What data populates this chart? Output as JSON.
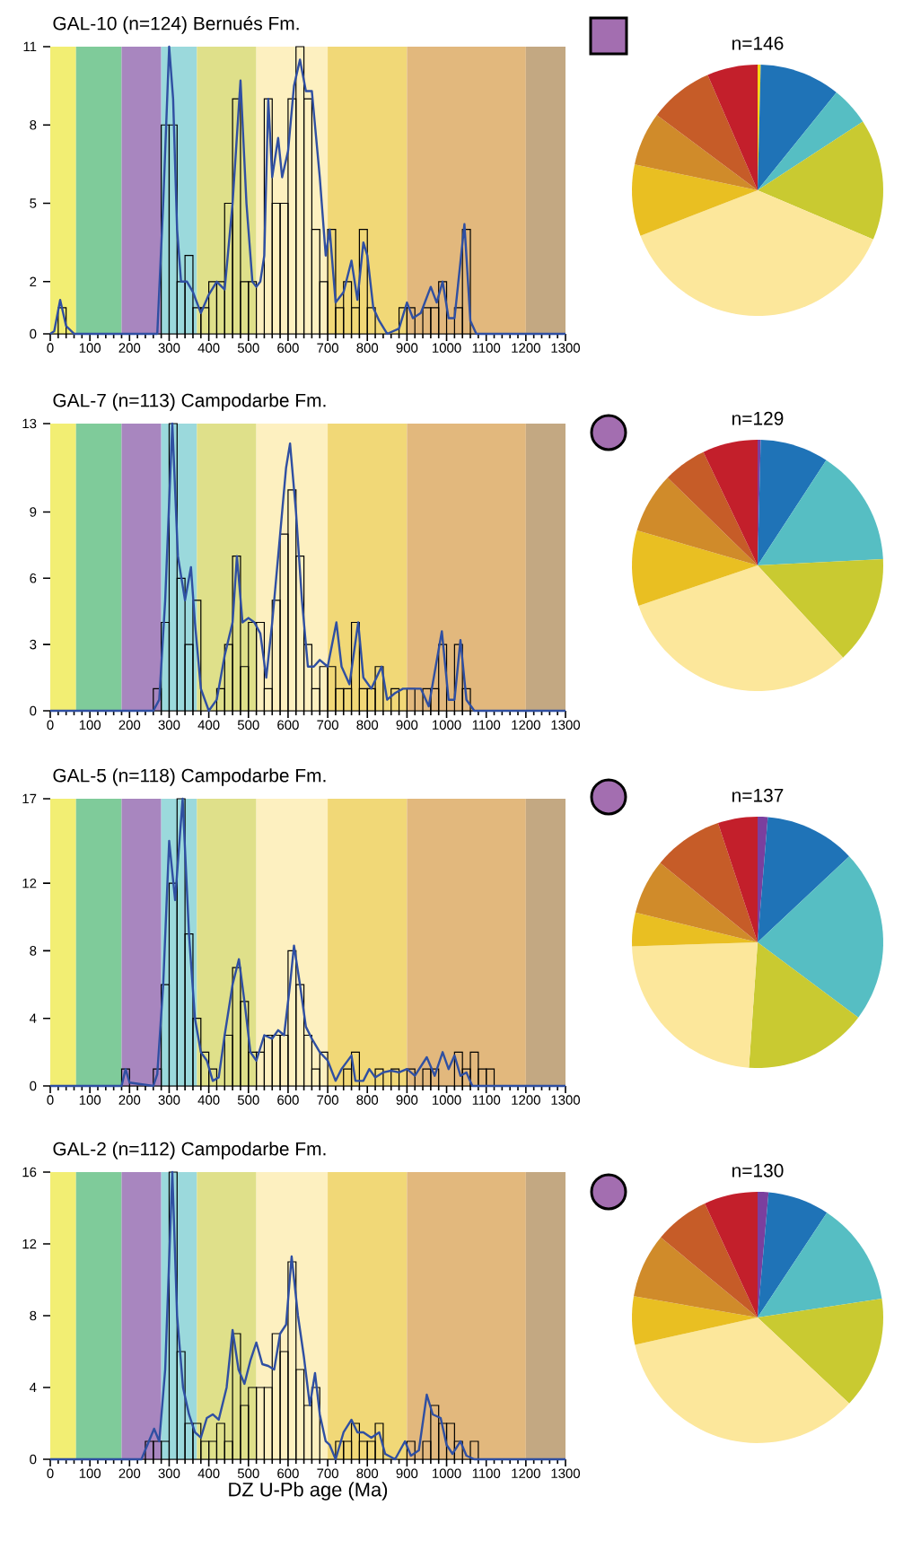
{
  "chart_data": [
    {
      "type": "histogram",
      "title": "GAL-10 (n=124) Bernués Fm.",
      "xlim": [
        0,
        1300
      ],
      "ylim": [
        0,
        11
      ],
      "xticks": [
        0,
        100,
        200,
        300,
        400,
        500,
        600,
        700,
        800,
        900,
        1000,
        1100,
        1200,
        1300
      ],
      "yticks": [
        0,
        2,
        5,
        8,
        11
      ],
      "bins": [
        0,
        20,
        40,
        60,
        80,
        100,
        120,
        140,
        160,
        180,
        200,
        220,
        240,
        260,
        280,
        300,
        320,
        340,
        360,
        380,
        400,
        420,
        440,
        460,
        480,
        500,
        520,
        540,
        560,
        580,
        600,
        620,
        640,
        660,
        680,
        700,
        720,
        740,
        760,
        780,
        800,
        820,
        840,
        860,
        880,
        900,
        920,
        940,
        960,
        980,
        1000,
        1020,
        1040,
        1060,
        1080,
        1100,
        1120,
        1140,
        1160,
        1180,
        1200,
        1220,
        1240,
        1260,
        1280,
        1300
      ],
      "bands": [
        {
          "axis": "x",
          "from": 0,
          "to": 65,
          "color": "#f2ee73"
        },
        {
          "axis": "x",
          "from": 65,
          "to": 180,
          "color": "#7fcb9a"
        },
        {
          "axis": "x",
          "from": 180,
          "to": 280,
          "color": "#a886bf"
        },
        {
          "axis": "x",
          "from": 280,
          "to": 370,
          "color": "#9bd9dc"
        },
        {
          "axis": "x",
          "from": 370,
          "to": 520,
          "color": "#dfe08a"
        },
        {
          "axis": "x",
          "from": 520,
          "to": 700,
          "color": "#fdf0c0"
        },
        {
          "axis": "x",
          "from": 700,
          "to": 900,
          "color": "#f1d877"
        },
        {
          "axis": "x",
          "from": 900,
          "to": 1200,
          "color": "#e2b87d"
        },
        {
          "axis": "x",
          "from": 1200,
          "to": 1300,
          "color": "#c3a882"
        }
      ],
      "color": "#000000",
      "values": [
        0,
        1,
        0,
        0,
        0,
        0,
        0,
        0,
        0,
        0,
        0,
        0,
        0,
        0,
        8,
        8,
        2,
        3,
        1,
        1,
        2,
        2,
        5,
        9,
        2,
        2,
        0,
        9,
        5,
        5,
        9,
        11,
        9,
        4,
        2,
        4,
        1,
        2,
        1,
        4,
        1,
        0,
        0,
        0,
        1,
        1,
        0,
        1,
        1,
        2,
        0,
        1,
        4,
        0,
        0,
        0,
        0,
        0,
        0,
        0,
        0,
        0,
        0,
        0,
        0
      ],
      "series": [
        {
          "type": "line",
          "color": "#2f4fa2",
          "x": [
            0,
            10,
            25,
            40,
            60,
            270,
            285,
            300,
            310,
            320,
            330,
            345,
            360,
            380,
            400,
            420,
            440,
            460,
            480,
            495,
            510,
            520,
            530,
            540,
            550,
            560,
            575,
            585,
            600,
            615,
            630,
            645,
            660,
            680,
            695,
            705,
            720,
            740,
            760,
            775,
            790,
            800,
            815,
            830,
            850,
            880,
            900,
            915,
            935,
            960,
            975,
            990,
            1005,
            1020,
            1045,
            1060,
            1075,
            1300
          ],
          "values": [
            0,
            0.1,
            1.3,
            0.3,
            0,
            0,
            5,
            11,
            9,
            4,
            2,
            2,
            1.6,
            0.8,
            1.5,
            2,
            1.7,
            5,
            9.7,
            5,
            2,
            1.8,
            2,
            3,
            9,
            6,
            7.5,
            6,
            7,
            9.5,
            10.5,
            9.3,
            9.3,
            6,
            3,
            4,
            1.2,
            1.6,
            2.8,
            1.3,
            3.5,
            3,
            1,
            0.5,
            0,
            0.2,
            1.2,
            0.6,
            0.8,
            1.8,
            1.2,
            2,
            0.6,
            0.6,
            4.2,
            0.5,
            0,
            0
          ]
        }
      ]
    },
    {
      "type": "pie",
      "title": "n=146",
      "categories": [
        null,
        null,
        null,
        null,
        null,
        null,
        null,
        null,
        null
      ],
      "values": [
        0.4,
        10.4,
        5.0,
        15.6,
        37.7,
        9.2,
        6.9,
        8.3,
        6.5
      ],
      "colors": [
        "#f5d816",
        "#1f73b7",
        "#56bec3",
        "#c9ca31",
        "#fce79b",
        "#e9bf22",
        "#d08b2a",
        "#c65c28",
        "#c31f2b"
      ]
    },
    {
      "type": "histogram",
      "title": "GAL-7 (n=113) Campodarbe Fm.",
      "xlim": [
        0,
        1300
      ],
      "ylim": [
        0,
        13
      ],
      "xticks": [
        0,
        100,
        200,
        300,
        400,
        500,
        600,
        700,
        800,
        900,
        1000,
        1100,
        1200,
        1300
      ],
      "yticks": [
        0,
        3,
        6,
        9,
        13
      ],
      "bins": [
        0,
        20,
        40,
        60,
        80,
        100,
        120,
        140,
        160,
        180,
        200,
        220,
        240,
        260,
        280,
        300,
        320,
        340,
        360,
        380,
        400,
        420,
        440,
        460,
        480,
        500,
        520,
        540,
        560,
        580,
        600,
        620,
        640,
        660,
        680,
        700,
        720,
        740,
        760,
        780,
        800,
        820,
        840,
        860,
        880,
        900,
        920,
        940,
        960,
        980,
        1000,
        1020,
        1040,
        1060,
        1080,
        1100,
        1120,
        1140,
        1160,
        1180,
        1200,
        1220,
        1240,
        1260,
        1280,
        1300
      ],
      "bands": [
        {
          "axis": "x",
          "from": 0,
          "to": 65,
          "color": "#f2ee73"
        },
        {
          "axis": "x",
          "from": 65,
          "to": 180,
          "color": "#7fcb9a"
        },
        {
          "axis": "x",
          "from": 180,
          "to": 280,
          "color": "#a886bf"
        },
        {
          "axis": "x",
          "from": 280,
          "to": 370,
          "color": "#9bd9dc"
        },
        {
          "axis": "x",
          "from": 370,
          "to": 520,
          "color": "#dfe08a"
        },
        {
          "axis": "x",
          "from": 520,
          "to": 700,
          "color": "#fdf0c0"
        },
        {
          "axis": "x",
          "from": 700,
          "to": 900,
          "color": "#f1d877"
        },
        {
          "axis": "x",
          "from": 900,
          "to": 1200,
          "color": "#e2b87d"
        },
        {
          "axis": "x",
          "from": 1200,
          "to": 1300,
          "color": "#c3a882"
        }
      ],
      "color": "#000000",
      "values": [
        0,
        0,
        0,
        0,
        0,
        0,
        0,
        0,
        0,
        0,
        0,
        0,
        0,
        1,
        4,
        13,
        6,
        3,
        5,
        0,
        0,
        1,
        3,
        7,
        2,
        4,
        4,
        1,
        5,
        8,
        10,
        7,
        3,
        1,
        2,
        2,
        1,
        1,
        4,
        1,
        1,
        2,
        0,
        1,
        0,
        1,
        0,
        1,
        1,
        3,
        0,
        3,
        1,
        0,
        0,
        0,
        0,
        0,
        0,
        0,
        0,
        0,
        0,
        0,
        0
      ],
      "series": [
        {
          "type": "line",
          "color": "#2f4fa2",
          "x": [
            0,
            260,
            275,
            290,
            308,
            322,
            340,
            355,
            365,
            380,
            400,
            420,
            440,
            460,
            471,
            485,
            500,
            515,
            530,
            545,
            560,
            580,
            595,
            605,
            620,
            635,
            650,
            665,
            680,
            700,
            722,
            735,
            755,
            777,
            790,
            810,
            836,
            850,
            870,
            890,
            915,
            935,
            955,
            988,
            1005,
            1020,
            1035,
            1050,
            1070,
            1300
          ],
          "values": [
            0,
            0,
            0.5,
            5,
            13,
            7,
            5,
            6.5,
            4,
            1,
            0,
            0.5,
            2.5,
            4,
            7,
            4,
            4.2,
            4,
            3.5,
            1.5,
            4,
            8,
            11,
            12.1,
            9,
            5,
            2,
            2,
            2.3,
            2,
            4,
            2,
            1.2,
            4,
            1.5,
            1,
            2,
            0.5,
            0.8,
            1,
            1,
            1,
            0.2,
            3.6,
            0.5,
            0.5,
            3.2,
            0.5,
            0,
            0
          ]
        }
      ]
    },
    {
      "type": "pie",
      "title": "n=129",
      "categories": [
        null,
        null,
        null,
        null,
        null,
        null,
        null,
        null,
        null
      ],
      "values": [
        0.4,
        8.8,
        15.0,
        13.9,
        31.7,
        9.7,
        7.8,
        5.6,
        7.1
      ],
      "colors": [
        "#7b3f9e",
        "#1f73b7",
        "#56bec3",
        "#c9ca31",
        "#fce79b",
        "#e9bf22",
        "#d08b2a",
        "#c65c28",
        "#c31f2b"
      ]
    },
    {
      "type": "histogram",
      "title": "GAL-5 (n=118) Campodarbe Fm.",
      "xlim": [
        0,
        1300
      ],
      "ylim": [
        0,
        17
      ],
      "xticks": [
        0,
        100,
        200,
        300,
        400,
        500,
        600,
        700,
        800,
        900,
        1000,
        1100,
        1200,
        1300
      ],
      "yticks": [
        0,
        4,
        8,
        12,
        17
      ],
      "bins": [
        0,
        20,
        40,
        60,
        80,
        100,
        120,
        140,
        160,
        180,
        200,
        220,
        240,
        260,
        280,
        300,
        320,
        340,
        360,
        380,
        400,
        420,
        440,
        460,
        480,
        500,
        520,
        540,
        560,
        580,
        600,
        620,
        640,
        660,
        680,
        700,
        720,
        740,
        760,
        780,
        800,
        820,
        840,
        860,
        880,
        900,
        920,
        940,
        960,
        980,
        1000,
        1020,
        1040,
        1060,
        1080,
        1100,
        1120,
        1140,
        1160,
        1180,
        1200,
        1220,
        1240,
        1260,
        1280,
        1300
      ],
      "bands": [
        {
          "axis": "x",
          "from": 0,
          "to": 65,
          "color": "#f2ee73"
        },
        {
          "axis": "x",
          "from": 65,
          "to": 180,
          "color": "#7fcb9a"
        },
        {
          "axis": "x",
          "from": 180,
          "to": 280,
          "color": "#a886bf"
        },
        {
          "axis": "x",
          "from": 280,
          "to": 370,
          "color": "#9bd9dc"
        },
        {
          "axis": "x",
          "from": 370,
          "to": 520,
          "color": "#dfe08a"
        },
        {
          "axis": "x",
          "from": 520,
          "to": 700,
          "color": "#fdf0c0"
        },
        {
          "axis": "x",
          "from": 700,
          "to": 900,
          "color": "#f1d877"
        },
        {
          "axis": "x",
          "from": 900,
          "to": 1200,
          "color": "#e2b87d"
        },
        {
          "axis": "x",
          "from": 1200,
          "to": 1300,
          "color": "#c3a882"
        }
      ],
      "color": "#000000",
      "values": [
        0,
        0,
        0,
        0,
        0,
        0,
        0,
        0,
        0,
        1,
        0,
        0,
        0,
        1,
        6,
        12,
        17,
        9,
        4,
        2,
        1,
        0,
        3,
        7,
        5,
        2,
        2,
        3,
        3,
        3,
        8,
        6,
        3,
        1,
        2,
        0,
        0,
        1,
        2,
        0,
        0,
        1,
        0,
        1,
        0,
        1,
        0,
        1,
        1,
        0,
        0,
        2,
        1,
        2,
        1,
        1,
        0,
        0,
        0,
        0,
        0,
        0,
        0,
        0,
        0
      ],
      "series": [
        {
          "type": "line",
          "color": "#2f4fa2",
          "x": [
            0,
            180,
            190,
            200,
            260,
            270,
            285,
            300,
            315,
            334,
            350,
            365,
            380,
            395,
            410,
            425,
            440,
            460,
            476,
            490,
            505,
            520,
            540,
            560,
            575,
            590,
            605,
            615,
            630,
            645,
            660,
            680,
            700,
            720,
            735,
            760,
            770,
            790,
            805,
            820,
            840,
            860,
            880,
            900,
            920,
            950,
            970,
            990,
            1005,
            1020,
            1035,
            1050,
            1065,
            1300
          ],
          "values": [
            0,
            0,
            1,
            0.2,
            0,
            0.7,
            6,
            14.5,
            11,
            17,
            9,
            4,
            2,
            1.5,
            0.3,
            0.5,
            3,
            6,
            7.5,
            5,
            2,
            1.5,
            3,
            2.8,
            3.3,
            3,
            6,
            8.3,
            6,
            3.5,
            2.8,
            2,
            1.5,
            0.3,
            1,
            1.8,
            0.3,
            0.3,
            1,
            0.5,
            0.8,
            0.9,
            0.8,
            1,
            0.6,
            1.7,
            0.6,
            2,
            1,
            1.8,
            0.6,
            0.8,
            0,
            0
          ]
        }
      ]
    },
    {
      "type": "pie",
      "title": "n=137",
      "categories": [
        null,
        null,
        null,
        null,
        null,
        null,
        null,
        null,
        null
      ],
      "values": [
        1.3,
        11.7,
        22.2,
        15.9,
        23.4,
        4.3,
        7.1,
        9.0,
        5.1
      ],
      "colors": [
        "#7b3f9e",
        "#1f73b7",
        "#56bec3",
        "#c9ca31",
        "#fce79b",
        "#e9bf22",
        "#d08b2a",
        "#c65c28",
        "#c31f2b"
      ]
    },
    {
      "type": "histogram",
      "title": "GAL-2 (n=112) Campodarbe Fm.",
      "xlabel": "DZ U-Pb age (Ma)",
      "xlim": [
        0,
        1300
      ],
      "ylim": [
        0,
        16
      ],
      "xticks": [
        0,
        100,
        200,
        300,
        400,
        500,
        600,
        700,
        800,
        900,
        1000,
        1100,
        1200,
        1300
      ],
      "yticks": [
        0,
        4,
        8,
        12,
        16
      ],
      "bins": [
        0,
        20,
        40,
        60,
        80,
        100,
        120,
        140,
        160,
        180,
        200,
        220,
        240,
        260,
        280,
        300,
        320,
        340,
        360,
        380,
        400,
        420,
        440,
        460,
        480,
        500,
        520,
        540,
        560,
        580,
        600,
        620,
        640,
        660,
        680,
        700,
        720,
        740,
        760,
        780,
        800,
        820,
        840,
        860,
        880,
        900,
        920,
        940,
        960,
        980,
        1000,
        1020,
        1040,
        1060,
        1080,
        1100,
        1120,
        1140,
        1160,
        1180,
        1200,
        1220,
        1240,
        1260,
        1280,
        1300
      ],
      "bands": [
        {
          "axis": "x",
          "from": 0,
          "to": 65,
          "color": "#f2ee73"
        },
        {
          "axis": "x",
          "from": 65,
          "to": 180,
          "color": "#7fcb9a"
        },
        {
          "axis": "x",
          "from": 180,
          "to": 280,
          "color": "#a886bf"
        },
        {
          "axis": "x",
          "from": 280,
          "to": 370,
          "color": "#9bd9dc"
        },
        {
          "axis": "x",
          "from": 370,
          "to": 520,
          "color": "#dfe08a"
        },
        {
          "axis": "x",
          "from": 520,
          "to": 700,
          "color": "#fdf0c0"
        },
        {
          "axis": "x",
          "from": 700,
          "to": 900,
          "color": "#f1d877"
        },
        {
          "axis": "x",
          "from": 900,
          "to": 1200,
          "color": "#e2b87d"
        },
        {
          "axis": "x",
          "from": 1200,
          "to": 1300,
          "color": "#c3a882"
        }
      ],
      "color": "#000000",
      "values": [
        0,
        0,
        0,
        0,
        0,
        0,
        0,
        0,
        0,
        0,
        0,
        0,
        1,
        1,
        1,
        16,
        6,
        2,
        2,
        1,
        1,
        2,
        1,
        7,
        3,
        4,
        4,
        4,
        7,
        6,
        11,
        5,
        3,
        4,
        0,
        0,
        1,
        1,
        2,
        1,
        1,
        2,
        0,
        0,
        0,
        1,
        0,
        1,
        3,
        2,
        2,
        1,
        0,
        1,
        0,
        0,
        0,
        0,
        0,
        0,
        0,
        0,
        0,
        0,
        0
      ],
      "series": [
        {
          "type": "line",
          "color": "#2f4fa2",
          "x": [
            0,
            230,
            262,
            275,
            290,
            308,
            320,
            335,
            350,
            365,
            380,
            395,
            410,
            425,
            445,
            460,
            475,
            490,
            505,
            520,
            535,
            550,
            565,
            580,
            595,
            609,
            625,
            640,
            655,
            668,
            680,
            695,
            705,
            720,
            740,
            760,
            775,
            790,
            810,
            830,
            845,
            870,
            895,
            910,
            930,
            950,
            965,
            985,
            1000,
            1015,
            1035,
            1050,
            1070,
            1300
          ],
          "values": [
            0,
            0,
            1.7,
            1,
            5,
            16,
            8,
            4,
            2.5,
            1.5,
            1.2,
            2.3,
            2.5,
            2.2,
            4,
            7.2,
            5,
            4.2,
            5.5,
            6.5,
            5.3,
            5.2,
            5,
            7,
            7.5,
            11.3,
            8,
            5.7,
            3,
            4.8,
            2.5,
            1,
            0.8,
            0,
            1.5,
            2.2,
            1.5,
            1.5,
            1.2,
            1.5,
            0.3,
            0,
            1,
            0.2,
            0.5,
            3.6,
            2.5,
            2.3,
            0.8,
            0.3,
            1,
            0.2,
            0,
            0
          ]
        }
      ]
    },
    {
      "type": "pie",
      "title": "n=130",
      "categories": [
        null,
        null,
        null,
        null,
        null,
        null,
        null,
        null,
        null
      ],
      "values": [
        1.4,
        7.9,
        13.3,
        14.4,
        34.5,
        6.2,
        8.3,
        7.1,
        6.9
      ],
      "colors": [
        "#7b3f9e",
        "#1f73b7",
        "#56bec3",
        "#c9ca31",
        "#fce79b",
        "#e9bf22",
        "#d08b2a",
        "#c65c28",
        "#c31f2b"
      ]
    }
  ]
}
